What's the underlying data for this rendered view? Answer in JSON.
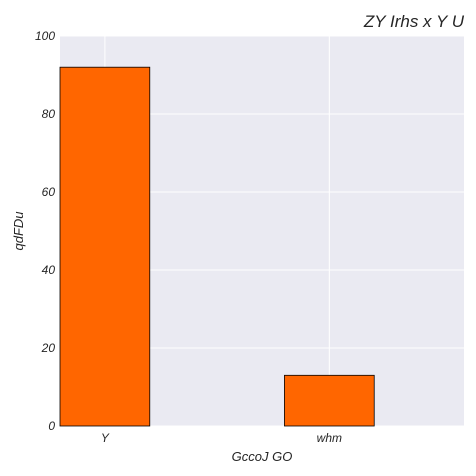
{
  "chart_data": {
    "type": "bar",
    "title": "ZY Irhs x Y U",
    "xlabel": "GccoJ  GO",
    "ylabel": "qdFDu",
    "categories": [
      "Y",
      "whm"
    ],
    "values": [
      92,
      13
    ],
    "ylim": [
      0,
      100
    ],
    "yticks": [
      0,
      20,
      40,
      60,
      80,
      100
    ],
    "grid": true,
    "bar_color": "#ff6600",
    "edge_color": "#000000",
    "plot_background": "#eaeaf2",
    "grid_color": "#ffffff"
  }
}
